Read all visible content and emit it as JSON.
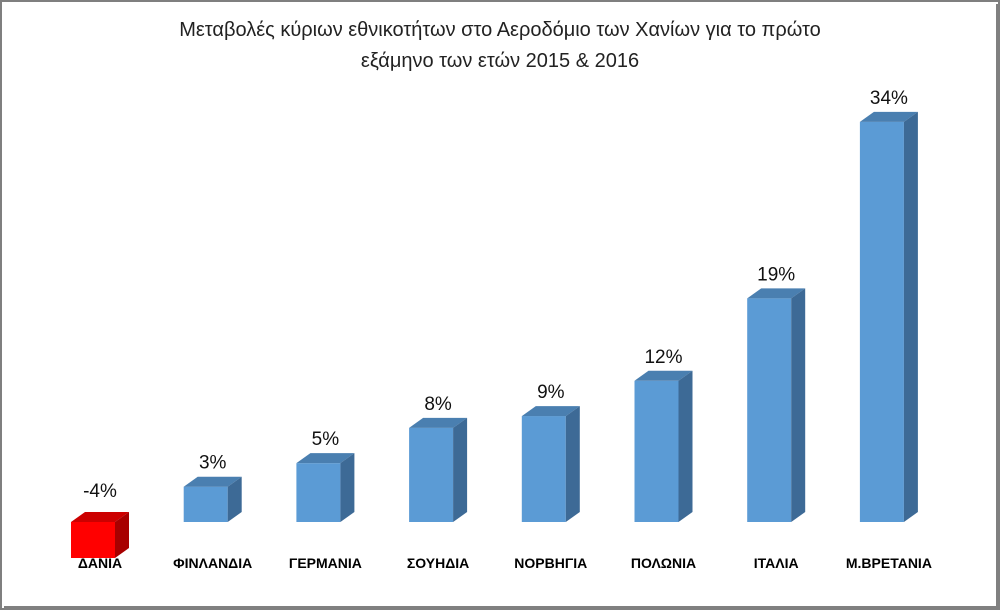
{
  "chart_data": {
    "type": "bar",
    "title_lines": [
      "Μεταβολές κύριων εθνικοτήτων στο Αεροδόμιο των Χανίων για το πρώτο",
      "εξάμηνο των ετών 2015 & 2016"
    ],
    "categories": [
      "ΔΑΝΙΑ",
      "ΦΙΝΛΑΝΔΙΑ",
      "ΓΕΡΜΑΝΙΑ",
      "ΣΟΥΗΔΙΑ",
      "ΝΟΡΒΗΓΙΑ",
      "ΠΟΛΩΝΙΑ",
      "ΙΤΑΛΙΑ",
      "Μ.ΒΡΕΤΑΝΙΑ"
    ],
    "values": [
      -4,
      3,
      5,
      8,
      9,
      12,
      19,
      34
    ],
    "value_labels": [
      "-4%",
      "3%",
      "5%",
      "8%",
      "9%",
      "12%",
      "19%",
      "34%"
    ],
    "unit": "%",
    "colors": {
      "positive_front": "#5b9bd5",
      "positive_side": "#3d6a96",
      "positive_top": "#4a7fb0",
      "negative_front": "#ff0000",
      "negative_side": "#a80000",
      "negative_top": "#cc0000"
    },
    "style": "3d-column",
    "legend": "none",
    "grid": false
  }
}
